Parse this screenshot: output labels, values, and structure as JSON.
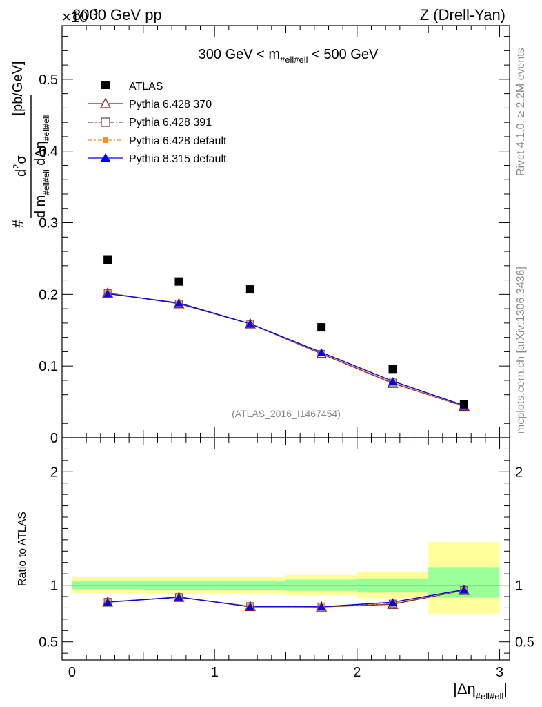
{
  "header": {
    "left": "8000 GeV pp",
    "exponent": "×10",
    "exponent_power": "−3",
    "right": "Z (Drell-Yan)"
  },
  "side_labels": {
    "rivet": "Rivet 4.1.0, ≥ 2.2M events",
    "mcplots": "mcplots.cern.ch [arXiv:1306.3436]"
  },
  "chart_data": {
    "type": "scatter",
    "title": "300 GeV < m_#ell#ell < 500 GeV",
    "title_main": "300 GeV < m",
    "title_sub": "#ell#ell",
    "title_tail": " < 500 GeV",
    "watermark": "(ATLAS_2016_I1467454)",
    "ylabel": {
      "hash": "#",
      "num_d2": "d",
      "num_2": "2",
      "num_sigma": "σ",
      "den_dm": "d m",
      "den_sub": "#ell#ell",
      "den_deta": " dΔη",
      "den_sub2": "#ell#ell",
      "units": "[pb/GeV]"
    },
    "xlabel": {
      "main": "|Δη",
      "sub": "#ell#ell",
      "tail": "|"
    },
    "x": [
      0.25,
      0.75,
      1.25,
      1.75,
      2.25,
      2.75
    ],
    "xlim": [
      -0.07,
      3.07
    ],
    "ylim": [
      0,
      0.575
    ],
    "yticks": [
      "0.1",
      "0.2",
      "0.3",
      "0.4",
      "0.5"
    ],
    "ytick_values": [
      0.1,
      0.2,
      0.3,
      0.4,
      0.5
    ],
    "xticks": [
      "0",
      "1",
      "2",
      "3"
    ],
    "xtick_values": [
      0,
      1,
      2,
      3
    ],
    "y_zero_label": "0",
    "series": [
      {
        "name": "ATLAS",
        "marker": "square",
        "color": "#000000",
        "values": [
          0.248,
          0.218,
          0.207,
          0.154,
          0.096,
          0.047
        ]
      },
      {
        "name": "Pythia 6.428 370",
        "marker": "open-triangle",
        "color": "#8b1a1a",
        "values": [
          0.202,
          0.187,
          0.159,
          0.117,
          0.076,
          0.044
        ]
      },
      {
        "name": "Pythia 6.428 391",
        "marker": "open-square",
        "color": "#7b4b5b",
        "values": [
          0.202,
          0.187,
          0.159,
          0.117,
          0.077,
          0.044
        ]
      },
      {
        "name": "Pythia 6.428 default",
        "marker": "filled-square",
        "color": "#f28e2b",
        "values": [
          0.202,
          0.188,
          0.159,
          0.118,
          0.077,
          0.044
        ]
      },
      {
        "name": "Pythia 8.315 default",
        "marker": "filled-triangle",
        "color": "#0000ee",
        "values": [
          0.201,
          0.188,
          0.159,
          0.119,
          0.079,
          0.045
        ]
      }
    ],
    "ratio": {
      "ylabel": "Ratio to ATLAS",
      "ylim": [
        0.34,
        2.3
      ],
      "yticks": [
        "0.5",
        "1",
        "2"
      ],
      "ytick_values": [
        0.5,
        1,
        2
      ],
      "bin_edges": [
        0,
        0.5,
        1,
        1.5,
        2,
        2.5,
        3
      ],
      "band_outer": [
        [
          0.93,
          1.07
        ],
        [
          0.925,
          1.075
        ],
        [
          0.925,
          1.075
        ],
        [
          0.91,
          1.09
        ],
        [
          0.885,
          1.12
        ],
        [
          0.75,
          1.38
        ]
      ],
      "band_inner": [
        [
          0.965,
          1.035
        ],
        [
          0.96,
          1.04
        ],
        [
          0.96,
          1.04
        ],
        [
          0.95,
          1.05
        ],
        [
          0.935,
          1.06
        ],
        [
          0.89,
          1.16
        ]
      ],
      "band_outer_color": "#ffff99",
      "band_inner_color": "#99ff99",
      "series": [
        {
          "name": "Pythia 6.428 370",
          "values": [
            0.852,
            0.893,
            0.813,
            0.808,
            0.832,
            0.955
          ]
        },
        {
          "name": "Pythia 6.428 391",
          "values": [
            0.853,
            0.895,
            0.815,
            0.812,
            0.838,
            0.957
          ]
        },
        {
          "name": "Pythia 6.428 default",
          "values": [
            0.853,
            0.895,
            0.815,
            0.812,
            0.838,
            0.957
          ]
        },
        {
          "name": "Pythia 8.315 default",
          "values": [
            0.85,
            0.895,
            0.81,
            0.81,
            0.85,
            0.96
          ]
        }
      ]
    }
  }
}
